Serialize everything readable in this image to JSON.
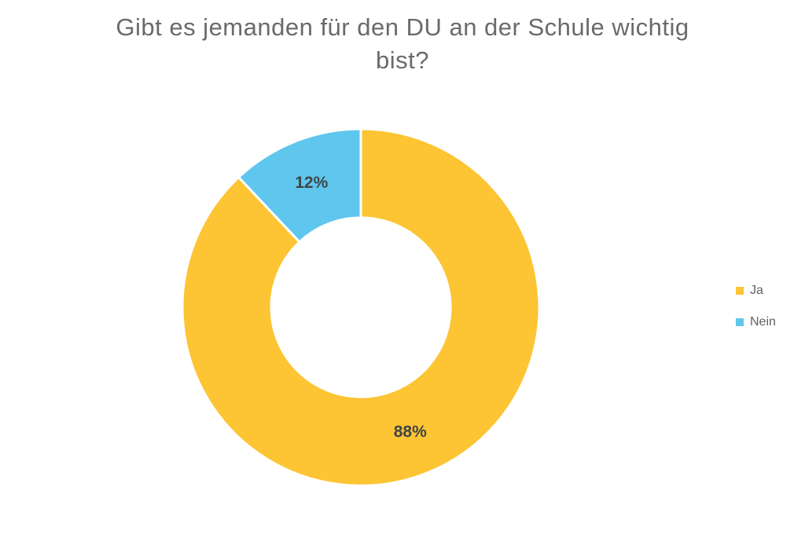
{
  "page": {
    "background": "#ffffff"
  },
  "chart_data": {
    "type": "pie",
    "donut": true,
    "title": "Gibt es jemanden für den DU an der Schule wichtig\nbist?",
    "categories": [
      "Ja",
      "Nein"
    ],
    "values": [
      88,
      12
    ],
    "data_labels": [
      "88%",
      "12%"
    ],
    "colors": [
      "#FDC433",
      "#5FC6ED"
    ],
    "slice_border_color": "#ffffff",
    "label_color": "#404549",
    "title_color": "#6a6a6a",
    "inner_radius_ratio": 0.5,
    "start_angle_deg": 0,
    "direction": "clockwise",
    "legend_position": "right",
    "legend": [
      {
        "label": "Ja",
        "color": "#FDC433"
      },
      {
        "label": "Nein",
        "color": "#5FC6ED"
      }
    ]
  }
}
